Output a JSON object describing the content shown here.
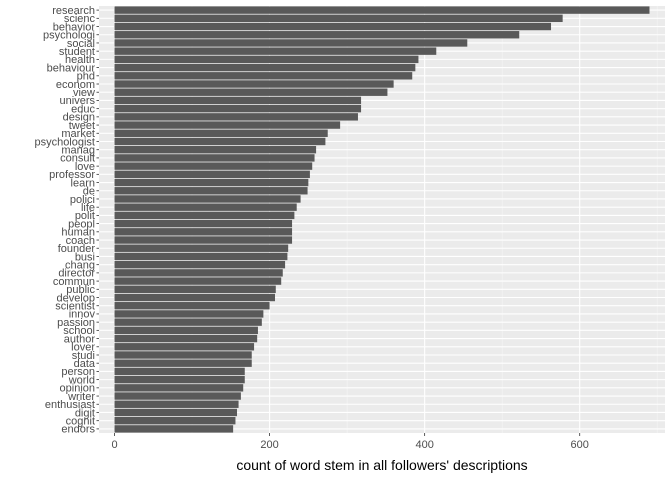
{
  "chart_data": {
    "type": "bar",
    "orientation": "horizontal",
    "xlabel": "count of word stem in all followers' descriptions",
    "ylabel": "",
    "xlim": [
      -20,
      710
    ],
    "xticks": [
      0,
      200,
      400,
      600
    ],
    "grid": true,
    "categories": [
      "research",
      "scienc",
      "behavior",
      "psychologi",
      "social",
      "student",
      "health",
      "behaviour",
      "phd",
      "econom",
      "view",
      "univers",
      "educ",
      "design",
      "tweet",
      "market",
      "psychologist",
      "manag",
      "consult",
      "love",
      "professor",
      "learn",
      "de",
      "polici",
      "life",
      "polit",
      "peopl",
      "human",
      "coach",
      "founder",
      "busi",
      "chang",
      "director",
      "commun",
      "public",
      "develop",
      "scientist",
      "innov",
      "passion",
      "school",
      "author",
      "lover",
      "studi",
      "data",
      "person",
      "world",
      "opinion",
      "writer",
      "enthusiast",
      "digit",
      "cognit",
      "endors"
    ],
    "values": [
      690,
      578,
      563,
      522,
      455,
      415,
      392,
      388,
      384,
      360,
      352,
      318,
      318,
      314,
      291,
      275,
      272,
      260,
      258,
      255,
      252,
      250,
      249,
      240,
      235,
      232,
      229,
      229,
      229,
      224,
      223,
      220,
      217,
      215,
      208,
      207,
      200,
      192,
      190,
      185,
      184,
      180,
      177,
      177,
      168,
      168,
      166,
      163,
      160,
      158,
      156,
      153
    ],
    "colors": {
      "bar": "#595959",
      "panel": "#ebebeb",
      "grid_major": "#ffffff",
      "grid_minor": "#f5f5f5"
    }
  }
}
